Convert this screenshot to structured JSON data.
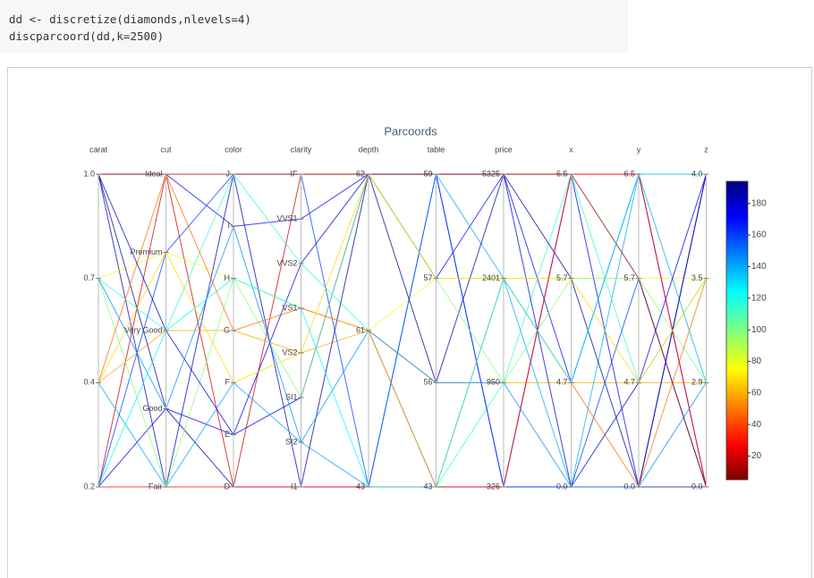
{
  "code": [
    "dd <- discretize(diamonds,nlevels=4)",
    "discparcoord(dd,k=2500)"
  ],
  "chart_data": {
    "type": "parcoords",
    "title": "Parcoords",
    "axes": [
      {
        "name": "carat",
        "levels": [
          "1.0",
          "0.7",
          "0.4",
          "0.2"
        ]
      },
      {
        "name": "cut",
        "levels": [
          "Ideal",
          "Premium",
          "Very Good",
          "Good",
          "Fair"
        ]
      },
      {
        "name": "color",
        "levels": [
          "J",
          "I",
          "H",
          "G",
          "F",
          "E",
          "D"
        ]
      },
      {
        "name": "clarity",
        "levels": [
          "IF",
          "VVS1",
          "VVS2",
          "VS1",
          "VS2",
          "SI1",
          "SI2",
          "I1"
        ]
      },
      {
        "name": "depth",
        "levels": [
          "62",
          "61",
          "43"
        ]
      },
      {
        "name": "table",
        "levels": [
          "59",
          "57",
          "56",
          "43"
        ]
      },
      {
        "name": "price",
        "levels": [
          "5325",
          "2401",
          "950",
          "326"
        ]
      },
      {
        "name": "x",
        "levels": [
          "6.5",
          "5.7",
          "4.7",
          "0.0"
        ]
      },
      {
        "name": "y",
        "levels": [
          "6.5",
          "5.7",
          "4.7",
          "0.0"
        ]
      },
      {
        "name": "z",
        "levels": [
          "4.0",
          "3.5",
          "2.9",
          "0.0"
        ]
      }
    ],
    "rows": [
      {
        "values": [
          "1.0",
          "Fair",
          "J",
          "I1",
          "43",
          "43",
          "326",
          "0.0",
          "0.0",
          "0.0"
        ],
        "count": 15
      },
      {
        "values": [
          "0.2",
          "Ideal",
          "D",
          "IF",
          "62",
          "59",
          "5325",
          "6.5",
          "6.5",
          "4.0"
        ],
        "count": 180
      },
      {
        "values": [
          "0.7",
          "Premium",
          "H",
          "VS1",
          "61",
          "57",
          "2401",
          "5.7",
          "5.7",
          "3.5"
        ],
        "count": 120
      },
      {
        "values": [
          "0.4",
          "Very Good",
          "G",
          "VS2",
          "61",
          "56",
          "950",
          "4.7",
          "4.7",
          "2.9"
        ],
        "count": 140
      },
      {
        "values": [
          "1.0",
          "Ideal",
          "I",
          "VVS1",
          "62",
          "57",
          "5325",
          "4.7",
          "6.5",
          "0.0"
        ],
        "count": 30
      },
      {
        "values": [
          "0.2",
          "Good",
          "E",
          "SI1",
          "62",
          "59",
          "326",
          "6.5",
          "0.0",
          "4.0"
        ],
        "count": 25
      },
      {
        "values": [
          "0.4",
          "Fair",
          "F",
          "SI2",
          "43",
          "59",
          "2401",
          "0.0",
          "6.5",
          "2.9"
        ],
        "count": 60
      },
      {
        "values": [
          "0.7",
          "Very Good",
          "J",
          "VVS2",
          "61",
          "43",
          "950",
          "6.5",
          "4.7",
          "3.5"
        ],
        "count": 85
      },
      {
        "values": [
          "1.0",
          "Good",
          "D",
          "I1",
          "62",
          "56",
          "5325",
          "5.7",
          "0.0",
          "4.0"
        ],
        "count": 10
      },
      {
        "values": [
          "0.2",
          "Premium",
          "J",
          "IF",
          "43",
          "59",
          "326",
          "0.0",
          "5.7",
          "0.0"
        ],
        "count": 40
      },
      {
        "values": [
          "0.7",
          "Fair",
          "H",
          "SI1",
          "62",
          "57",
          "950",
          "5.7",
          "5.7",
          "2.9"
        ],
        "count": 100
      },
      {
        "values": [
          "0.4",
          "Ideal",
          "G",
          "VS1",
          "61",
          "43",
          "2401",
          "4.7",
          "0.0",
          "3.5"
        ],
        "count": 150
      },
      {
        "values": [
          "1.0",
          "Very Good",
          "E",
          "VVS2",
          "62",
          "59",
          "5325",
          "0.0",
          "4.7",
          "4.0"
        ],
        "count": 20
      },
      {
        "values": [
          "0.2",
          "Fair",
          "D",
          "I1",
          "43",
          "43",
          "326",
          "6.5",
          "6.5",
          "0.0"
        ],
        "count": 170
      },
      {
        "values": [
          "0.7",
          "Good",
          "I",
          "SI2",
          "61",
          "56",
          "950",
          "0.0",
          "0.0",
          "2.9"
        ],
        "count": 55
      },
      {
        "values": [
          "0.4",
          "Premium",
          "F",
          "VS2",
          "62",
          "57",
          "2401",
          "5.7",
          "4.7",
          "3.5"
        ],
        "count": 130
      },
      {
        "values": [
          "1.0",
          "Ideal",
          "J",
          "IF",
          "62",
          "59",
          "5325",
          "6.5",
          "5.7",
          "0.0"
        ],
        "count": 190
      },
      {
        "values": [
          "0.2",
          "Very Good",
          "H",
          "VS1",
          "43",
          "43",
          "2401",
          "4.7",
          "6.5",
          "4.0"
        ],
        "count": 75
      }
    ],
    "colorbar": {
      "lim": [
        5,
        194
      ],
      "ticks": [
        20,
        40,
        60,
        80,
        100,
        120,
        140,
        160,
        180
      ]
    }
  }
}
